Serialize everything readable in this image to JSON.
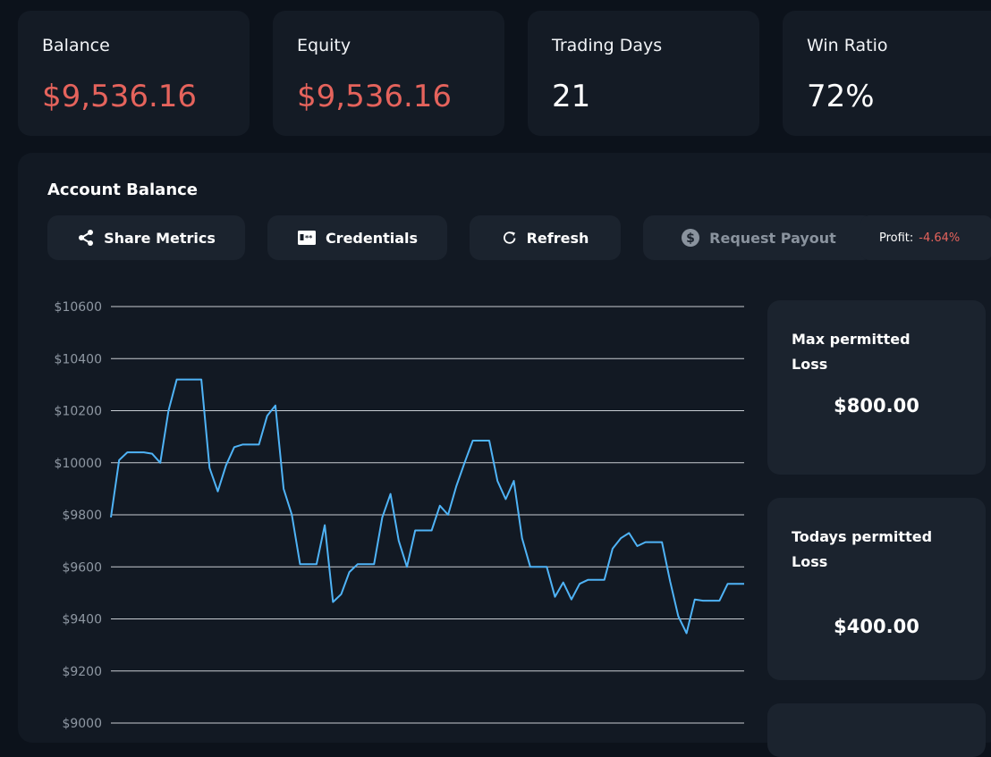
{
  "stats": [
    {
      "label": "Balance",
      "value": "$9,536.16",
      "negative": true
    },
    {
      "label": "Equity",
      "value": "$9,536.16",
      "negative": true
    },
    {
      "label": "Trading Days",
      "value": "21",
      "negative": false
    },
    {
      "label": "Win Ratio",
      "value": "72%",
      "negative": false
    }
  ],
  "panel": {
    "title": "Account Balance",
    "buttons": {
      "share": "Share Metrics",
      "credentials": "Credentials",
      "refresh": "Refresh",
      "payout": "Request Payout"
    },
    "profit": {
      "label": "Profit:",
      "value": "-4.64%"
    }
  },
  "side_cards": {
    "max_loss": {
      "title": "Max permitted Loss",
      "value": "$800.00"
    },
    "today_loss": {
      "title": "Todays permitted Loss",
      "value": "$400.00"
    }
  },
  "colors": {
    "line": "#4fb3f6",
    "negative": "#e5635c",
    "grid": "#c8ccd2"
  },
  "chart_data": {
    "type": "line",
    "title": "",
    "xlabel": "",
    "ylabel": "",
    "ylim": [
      9000,
      10600
    ],
    "yticks": [
      "$10600",
      "$10400",
      "$10200",
      "$10000",
      "$9800",
      "$9600",
      "$9400",
      "$9200",
      "$9000"
    ],
    "ytick_values": [
      10600,
      10400,
      10200,
      10000,
      9800,
      9600,
      9400,
      9200,
      9000
    ],
    "grid": true,
    "series": [
      {
        "values": [
          9790,
          10010,
          10040,
          10040,
          10040,
          10035,
          10000,
          10200,
          10320,
          10320,
          10320,
          10320,
          9980,
          9890,
          9990,
          10060,
          10070,
          10070,
          10070,
          10180,
          10220,
          9900,
          9800,
          9610,
          9610,
          9610,
          9760,
          9465,
          9495,
          9580,
          9610,
          9610,
          9610,
          9790,
          9880,
          9700,
          9600,
          9740,
          9740,
          9740,
          9835,
          9800,
          9910,
          10000,
          10085,
          10085,
          10085,
          9930,
          9860,
          9930,
          9710,
          9600,
          9600,
          9600,
          9485,
          9540,
          9475,
          9535,
          9550,
          9550,
          9550,
          9670,
          9710,
          9730,
          9680,
          9695,
          9695,
          9695,
          9545,
          9410,
          9345,
          9475,
          9470,
          9470,
          9470,
          9535,
          9535,
          9535
        ]
      }
    ]
  }
}
